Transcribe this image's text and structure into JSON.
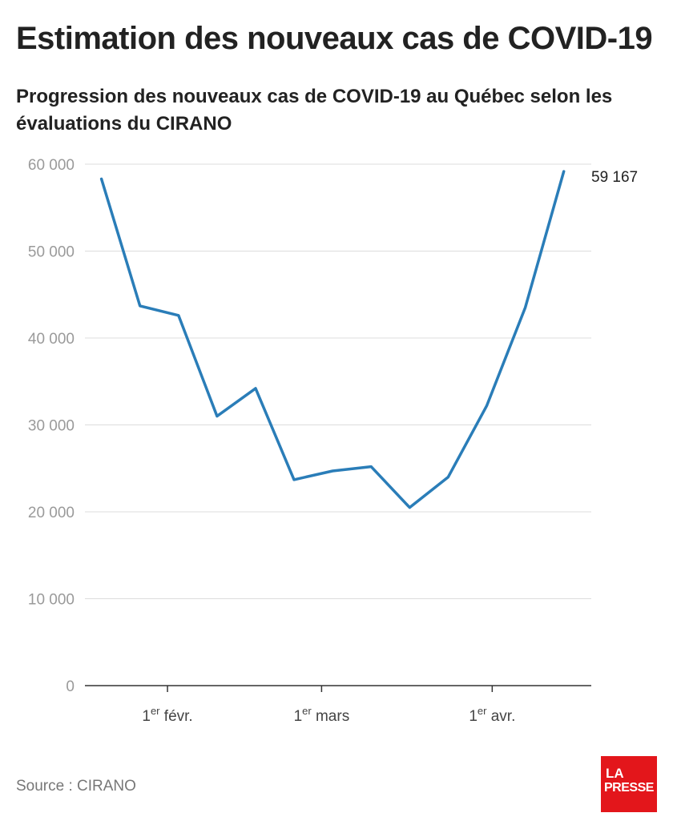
{
  "title": "Estimation des nouveaux cas de COVID-19",
  "subtitle": "Progression des nouveaux cas de COVID-19 au Québec selon les évaluations du CIRANO",
  "source": "Source : CIRANO",
  "logo": {
    "line1": "LA",
    "line2": "PRESSE",
    "color": "#e3161b"
  },
  "chart_data": {
    "type": "line",
    "line_color": "#2a7db8",
    "grid": true,
    "y_ticks": [
      {
        "value": 0,
        "label": "0"
      },
      {
        "value": 10000,
        "label": "10 000"
      },
      {
        "value": 20000,
        "label": "20 000"
      },
      {
        "value": 30000,
        "label": "30 000"
      },
      {
        "value": 40000,
        "label": "40 000"
      },
      {
        "value": 50000,
        "label": "50 000"
      },
      {
        "value": 60000,
        "label": "60 000"
      }
    ],
    "ylim": [
      0,
      60000
    ],
    "x_ticks": [
      {
        "date": "2022-02-01",
        "num": "1",
        "sup": "er",
        "rest": " févr."
      },
      {
        "date": "2022-03-01",
        "num": "1",
        "sup": "er",
        "rest": " mars"
      },
      {
        "date": "2022-04-01",
        "num": "1",
        "sup": "er",
        "rest": " avr."
      }
    ],
    "xlim": [
      "2022-01-17",
      "2022-04-19"
    ],
    "series": [
      {
        "points": [
          {
            "x": "2022-01-20",
            "y": 58300
          },
          {
            "x": "2022-01-27",
            "y": 43700
          },
          {
            "x": "2022-02-03",
            "y": 42600
          },
          {
            "x": "2022-02-10",
            "y": 31000
          },
          {
            "x": "2022-02-17",
            "y": 34200
          },
          {
            "x": "2022-02-24",
            "y": 23700
          },
          {
            "x": "2022-03-03",
            "y": 24700
          },
          {
            "x": "2022-03-10",
            "y": 25200
          },
          {
            "x": "2022-03-17",
            "y": 20500
          },
          {
            "x": "2022-03-24",
            "y": 24000
          },
          {
            "x": "2022-03-31",
            "y": 32200
          },
          {
            "x": "2022-04-07",
            "y": 43500
          },
          {
            "x": "2022-04-14",
            "y": 59167
          }
        ]
      }
    ],
    "end_label": "59 167"
  }
}
